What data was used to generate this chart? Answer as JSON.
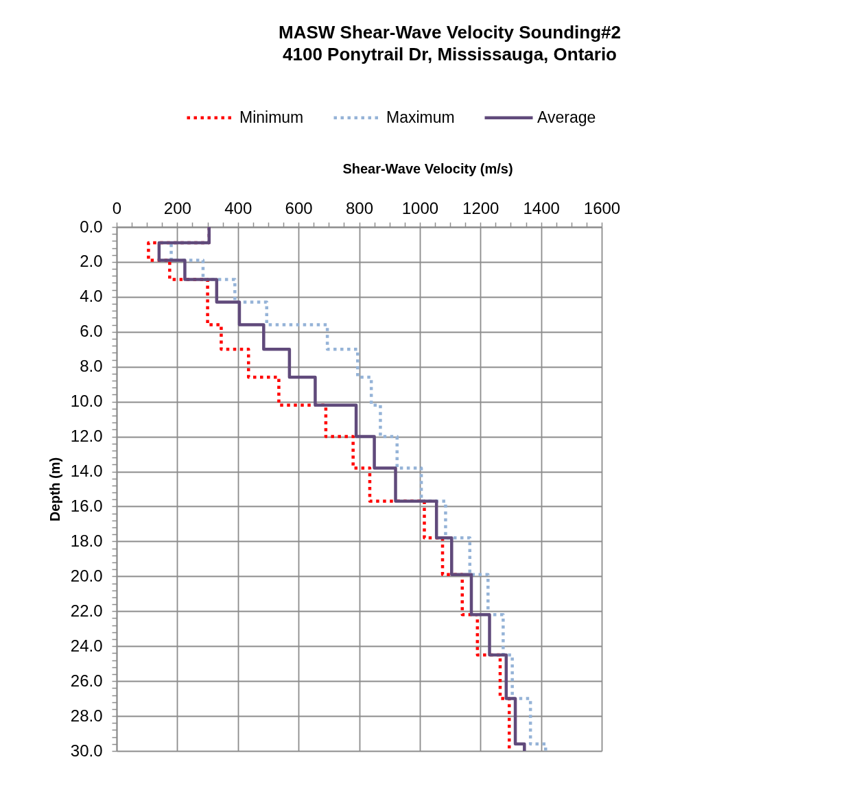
{
  "chart_data": {
    "type": "line",
    "title": "MASW Shear-Wave Velocity Sounding#2",
    "subtitle": "4100 Ponytrail Dr, Mississauga, Ontario",
    "xlabel": "Shear-Wave Velocity (m/s)",
    "ylabel": "Depth (m)",
    "xlim": [
      0,
      1600
    ],
    "ylim": [
      30,
      0
    ],
    "xticks": [
      0,
      {
        "value": 50,
        "label": null
      },
      {
        "value": 100,
        "label": null
      },
      {
        "value": 150,
        "label": null
      },
      200,
      {
        "value": 250,
        "label": null
      },
      {
        "value": 300,
        "label": null
      },
      {
        "value": 350,
        "label": null
      },
      400,
      {
        "value": 450,
        "label": null
      },
      {
        "value": 500,
        "label": null
      },
      {
        "value": 550,
        "label": null
      },
      600,
      {
        "value": 650,
        "label": null
      },
      {
        "value": 700,
        "label": null
      },
      {
        "value": 750,
        "label": null
      },
      800,
      {
        "value": 850,
        "label": null
      },
      {
        "value": 900,
        "label": null
      },
      {
        "value": 950,
        "label": null
      },
      1000,
      {
        "value": 1050,
        "label": null
      },
      {
        "value": 1100,
        "label": null
      },
      {
        "value": 1150,
        "label": null
      },
      1200,
      {
        "value": 1250,
        "label": null
      },
      {
        "value": 1300,
        "label": null
      },
      {
        "value": 1350,
        "label": null
      },
      1400,
      {
        "value": 1450,
        "label": null
      },
      {
        "value": 1500,
        "label": null
      },
      {
        "value": 1550,
        "label": null
      },
      1600
    ],
    "yticks": [
      {
        "value": 0,
        "label": "0.0"
      },
      {
        "value": 0.4,
        "label": null
      },
      {
        "value": 0.8,
        "label": null
      },
      {
        "value": 1.2,
        "label": null
      },
      {
        "value": 1.6,
        "label": null
      },
      {
        "value": 2,
        "label": "2.0"
      },
      {
        "value": 2.4,
        "label": null
      },
      {
        "value": 2.8,
        "label": null
      },
      {
        "value": 3.2,
        "label": null
      },
      {
        "value": 3.6,
        "label": null
      },
      {
        "value": 4,
        "label": "4.0"
      },
      {
        "value": 4.4,
        "label": null
      },
      {
        "value": 4.8,
        "label": null
      },
      {
        "value": 5.2,
        "label": null
      },
      {
        "value": 5.6,
        "label": null
      },
      {
        "value": 6,
        "label": "6.0"
      },
      {
        "value": 6.4,
        "label": null
      },
      {
        "value": 6.8,
        "label": null
      },
      {
        "value": 7.2,
        "label": null
      },
      {
        "value": 7.6,
        "label": null
      },
      {
        "value": 8,
        "label": "8.0"
      },
      {
        "value": 8.4,
        "label": null
      },
      {
        "value": 8.8,
        "label": null
      },
      {
        "value": 9.2,
        "label": null
      },
      {
        "value": 9.6,
        "label": null
      },
      {
        "value": 10,
        "label": "10.0"
      },
      {
        "value": 10.4,
        "label": null
      },
      {
        "value": 10.8,
        "label": null
      },
      {
        "value": 11.2,
        "label": null
      },
      {
        "value": 11.6,
        "label": null
      },
      {
        "value": 12,
        "label": "12.0"
      },
      {
        "value": 12.4,
        "label": null
      },
      {
        "value": 12.8,
        "label": null
      },
      {
        "value": 13.2,
        "label": null
      },
      {
        "value": 13.6,
        "label": null
      },
      {
        "value": 14,
        "label": "14.0"
      },
      {
        "value": 14.4,
        "label": null
      },
      {
        "value": 14.8,
        "label": null
      },
      {
        "value": 15.2,
        "label": null
      },
      {
        "value": 15.6,
        "label": null
      },
      {
        "value": 16,
        "label": "16.0"
      },
      {
        "value": 16.4,
        "label": null
      },
      {
        "value": 16.8,
        "label": null
      },
      {
        "value": 17.2,
        "label": null
      },
      {
        "value": 17.6,
        "label": null
      },
      {
        "value": 18,
        "label": "18.0"
      },
      {
        "value": 18.4,
        "label": null
      },
      {
        "value": 18.8,
        "label": null
      },
      {
        "value": 19.2,
        "label": null
      },
      {
        "value": 19.6,
        "label": null
      },
      {
        "value": 20,
        "label": "20.0"
      },
      {
        "value": 20.4,
        "label": null
      },
      {
        "value": 20.8,
        "label": null
      },
      {
        "value": 21.2,
        "label": null
      },
      {
        "value": 21.6,
        "label": null
      },
      {
        "value": 22,
        "label": "22.0"
      },
      {
        "value": 22.4,
        "label": null
      },
      {
        "value": 22.8,
        "label": null
      },
      {
        "value": 23.2,
        "label": null
      },
      {
        "value": 23.6,
        "label": null
      },
      {
        "value": 24,
        "label": "24.0"
      },
      {
        "value": 24.4,
        "label": null
      },
      {
        "value": 24.8,
        "label": null
      },
      {
        "value": 25.2,
        "label": null
      },
      {
        "value": 25.6,
        "label": null
      },
      {
        "value": 26,
        "label": "26.0"
      },
      {
        "value": 26.4,
        "label": null
      },
      {
        "value": 26.8,
        "label": null
      },
      {
        "value": 27.2,
        "label": null
      },
      {
        "value": 27.6,
        "label": null
      },
      {
        "value": 28,
        "label": "28.0"
      },
      {
        "value": 28.4,
        "label": null
      },
      {
        "value": 28.8,
        "label": null
      },
      {
        "value": 29.2,
        "label": null
      },
      {
        "value": 29.6,
        "label": null
      },
      {
        "value": 30,
        "label": "30.0"
      }
    ],
    "grid": true,
    "legend": "top",
    "series": [
      {
        "name": "Minimum",
        "color": "#ff0000",
        "line_style": "dotted",
        "x": [
          305,
          305,
          105,
          105,
          175,
          175,
          300,
          300,
          300,
          300,
          345,
          345,
          435,
          435,
          535,
          535,
          690,
          690,
          780,
          780,
          835,
          835,
          1015,
          1015,
          1075,
          1075,
          1140,
          1140,
          1190,
          1190,
          1265,
          1265,
          1295,
          1295,
          1295,
          1295
        ],
        "values": [
          0,
          0.9,
          0.9,
          1.9,
          1.9,
          3.0,
          3.0,
          4.3,
          4.3,
          5.6,
          5.6,
          7.0,
          7.0,
          8.6,
          8.6,
          10.2,
          10.2,
          12.0,
          12.0,
          13.8,
          13.8,
          15.7,
          15.7,
          17.8,
          17.8,
          19.9,
          19.9,
          22.2,
          22.2,
          24.5,
          24.5,
          27.0,
          27.0,
          29.6,
          29.6,
          30.0
        ]
      },
      {
        "name": "Maximum",
        "color": "#95b3d7",
        "line_style": "dotted",
        "x": [
          305,
          305,
          180,
          180,
          285,
          285,
          390,
          390,
          495,
          495,
          695,
          695,
          795,
          795,
          840,
          840,
          870,
          870,
          925,
          925,
          1005,
          1005,
          1085,
          1085,
          1165,
          1165,
          1225,
          1225,
          1275,
          1275,
          1305,
          1305,
          1365,
          1365,
          1415,
          1415
        ],
        "values": [
          0,
          0.9,
          0.9,
          1.9,
          1.9,
          3.0,
          3.0,
          4.3,
          4.3,
          5.6,
          5.6,
          7.0,
          7.0,
          8.6,
          8.6,
          10.2,
          10.2,
          12.0,
          12.0,
          13.8,
          13.8,
          15.7,
          15.7,
          17.8,
          17.8,
          19.9,
          19.9,
          22.2,
          22.2,
          24.5,
          24.5,
          27.0,
          27.0,
          29.6,
          29.6,
          30.0
        ]
      },
      {
        "name": "Average",
        "color": "#604a7b",
        "line_style": "solid",
        "x": [
          305,
          305,
          140,
          140,
          225,
          225,
          330,
          330,
          405,
          405,
          485,
          485,
          570,
          570,
          655,
          655,
          790,
          790,
          850,
          850,
          920,
          920,
          1055,
          1055,
          1105,
          1105,
          1170,
          1170,
          1230,
          1230,
          1285,
          1285,
          1315,
          1315,
          1345,
          1345
        ],
        "values": [
          0,
          0.9,
          0.9,
          1.9,
          1.9,
          3.0,
          3.0,
          4.3,
          4.3,
          5.6,
          5.6,
          7.0,
          7.0,
          8.6,
          8.6,
          10.2,
          10.2,
          12.0,
          12.0,
          13.8,
          13.8,
          15.7,
          15.7,
          17.8,
          17.8,
          19.9,
          19.9,
          22.2,
          22.2,
          24.5,
          24.5,
          27.0,
          27.0,
          29.6,
          29.6,
          30.0
        ]
      }
    ]
  }
}
